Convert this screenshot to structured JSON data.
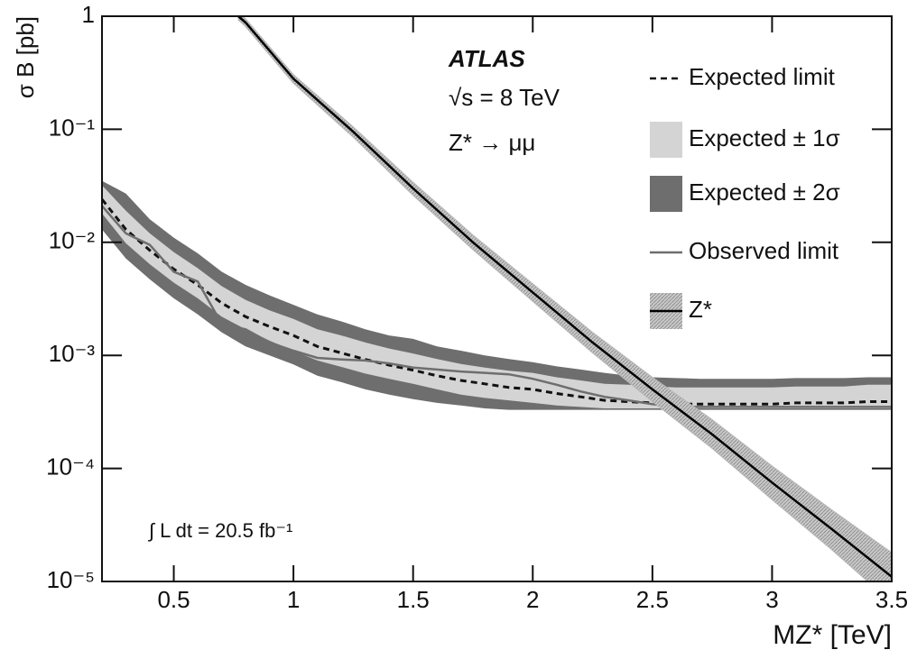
{
  "chart_data": {
    "type": "line",
    "x_label": "MZ* [TeV]",
    "y_label": "σ B [pb]",
    "annotations": [
      "ATLAS",
      "√s = 8 TeV",
      "Z* → μμ",
      "∫ L dt = 20.5 fb⁻¹"
    ],
    "log_y": true,
    "xlim": [
      0.2,
      3.5
    ],
    "ylim": [
      1e-05,
      1
    ],
    "xticks": [
      0.5,
      1,
      1.5,
      2,
      2.5,
      3,
      3.5
    ],
    "yticks": [
      {
        "value": 1e-05,
        "label": "10⁻⁵"
      },
      {
        "value": 0.0001,
        "label": "10⁻⁴"
      },
      {
        "value": 0.001,
        "label": "10⁻³"
      },
      {
        "value": 0.01,
        "label": "10⁻²"
      },
      {
        "value": 0.1,
        "label": "10⁻¹"
      },
      1
    ],
    "series": [
      {
        "name": "Expected limit",
        "kind": "line",
        "color": "#111111",
        "dashed": true,
        "x": [
          0.2,
          0.3,
          0.4,
          0.5,
          0.6,
          0.7,
          0.8,
          0.9,
          1.0,
          1.1,
          1.2,
          1.3,
          1.4,
          1.5,
          1.6,
          1.7,
          1.8,
          1.9,
          2.0,
          2.1,
          2.2,
          2.3,
          2.4,
          2.5,
          2.6,
          2.7,
          2.8,
          2.9,
          3.0,
          3.1,
          3.2,
          3.3,
          3.4,
          3.5
        ],
        "values": [
          0.024,
          0.013,
          0.0085,
          0.0058,
          0.0042,
          0.0029,
          0.0022,
          0.0018,
          0.0015,
          0.0012,
          0.00105,
          0.00092,
          0.00082,
          0.00074,
          0.00066,
          0.0006,
          0.00056,
          0.00052,
          0.0005,
          0.00046,
          0.00043,
          0.0004,
          0.00039,
          0.00038,
          0.00037,
          0.00037,
          0.00037,
          0.00037,
          0.00037,
          0.00038,
          0.00038,
          0.00038,
          0.00039,
          0.00039
        ]
      },
      {
        "name": "Expected ± 1σ",
        "kind": "band",
        "color": "#d4d4d4",
        "x": [
          0.2,
          0.3,
          0.4,
          0.5,
          0.6,
          0.7,
          0.8,
          0.9,
          1.0,
          1.1,
          1.2,
          1.3,
          1.4,
          1.5,
          1.6,
          1.7,
          1.8,
          1.9,
          2.0,
          2.1,
          2.2,
          2.3,
          2.4,
          2.5,
          2.6,
          2.7,
          2.8,
          2.9,
          3.0,
          3.1,
          3.2,
          3.3,
          3.4,
          3.5
        ],
        "lower": [
          0.018,
          0.0098,
          0.0064,
          0.0044,
          0.0032,
          0.0022,
          0.0017,
          0.00135,
          0.0011,
          0.0009,
          0.00079,
          0.00069,
          0.00062,
          0.00056,
          0.0005,
          0.00045,
          0.00042,
          0.0004,
          0.00038,
          0.00036,
          0.00035,
          0.00034,
          0.00034,
          0.00034,
          0.00034,
          0.00034,
          0.00034,
          0.00034,
          0.00034,
          0.00034,
          0.00034,
          0.00034,
          0.00034,
          0.00034
        ],
        "upper": [
          0.032,
          0.019,
          0.012,
          0.0082,
          0.0059,
          0.0041,
          0.0031,
          0.0025,
          0.0021,
          0.0017,
          0.0015,
          0.0013,
          0.00115,
          0.00104,
          0.00093,
          0.00084,
          0.00078,
          0.00073,
          0.0007,
          0.00064,
          0.0006,
          0.00056,
          0.00055,
          0.00053,
          0.00052,
          0.00052,
          0.00052,
          0.00052,
          0.00052,
          0.00053,
          0.00053,
          0.00053,
          0.00055,
          0.00055
        ]
      },
      {
        "name": "Expected ± 2σ",
        "kind": "band",
        "color": "#6e6e6e",
        "x": [
          0.2,
          0.3,
          0.4,
          0.5,
          0.6,
          0.7,
          0.8,
          0.9,
          1.0,
          1.1,
          1.2,
          1.3,
          1.4,
          1.5,
          1.6,
          1.7,
          1.8,
          1.9,
          2.0,
          2.1,
          2.2,
          2.3,
          2.4,
          2.5,
          2.6,
          2.7,
          2.8,
          2.9,
          3.0,
          3.1,
          3.2,
          3.3,
          3.4,
          3.5
        ],
        "lower": [
          0.013,
          0.0072,
          0.0047,
          0.0032,
          0.0023,
          0.0016,
          0.0012,
          0.001,
          0.00083,
          0.00066,
          0.00058,
          0.0005,
          0.00045,
          0.00041,
          0.00038,
          0.00036,
          0.00034,
          0.00033,
          0.00033,
          0.00033,
          0.00033,
          0.00033,
          0.00033,
          0.00033,
          0.00033,
          0.00033,
          0.00033,
          0.00033,
          0.00033,
          0.00033,
          0.00033,
          0.00033,
          0.00033,
          0.00033
        ],
        "upper": [
          0.035,
          0.027,
          0.016,
          0.011,
          0.008,
          0.0055,
          0.0042,
          0.0034,
          0.0028,
          0.0023,
          0.002,
          0.0017,
          0.0015,
          0.0014,
          0.0012,
          0.0011,
          0.001,
          0.00093,
          0.00087,
          0.0008,
          0.00075,
          0.0007,
          0.00066,
          0.00064,
          0.00063,
          0.00062,
          0.00062,
          0.00062,
          0.00062,
          0.00063,
          0.00063,
          0.00063,
          0.00064,
          0.00064
        ]
      },
      {
        "name": "Observed limit",
        "kind": "line",
        "color": "#6e6e6e",
        "x": [
          0.2,
          0.3,
          0.4,
          0.5,
          0.6,
          0.7,
          0.8,
          0.9,
          1.0,
          1.1,
          1.2,
          1.3,
          1.4,
          1.5,
          1.6,
          1.7,
          1.8,
          1.9,
          2.0,
          2.1,
          2.2,
          2.3,
          2.4,
          2.5,
          2.6,
          2.7,
          2.8,
          2.9,
          3.0,
          3.1,
          3.2,
          3.3,
          3.4,
          3.5
        ],
        "values": [
          0.021,
          0.012,
          0.0095,
          0.0055,
          0.0045,
          0.0019,
          0.0017,
          0.0013,
          0.0011,
          0.00095,
          0.00092,
          0.0009,
          0.00085,
          0.00078,
          0.00075,
          0.00072,
          0.0007,
          0.00068,
          0.00062,
          0.00055,
          0.00048,
          0.00043,
          0.0004,
          0.00037,
          0.00035,
          0.00035,
          0.00035,
          0.00035,
          0.00035,
          0.00035,
          0.00035,
          0.00035,
          0.00035,
          0.00035
        ]
      },
      {
        "name": "Z*",
        "kind": "line",
        "color": "#000000",
        "band_color": "#b8b8b8",
        "x": [
          0.77,
          0.8,
          1.0,
          1.25,
          1.5,
          1.75,
          2.0,
          2.25,
          2.5,
          2.75,
          3.0,
          3.25,
          3.5
        ],
        "values": [
          1,
          0.88,
          0.28,
          0.095,
          0.03,
          0.01,
          0.0036,
          0.0013,
          0.0005,
          0.0002,
          7.5e-05,
          2.9e-05,
          1.1e-05
        ],
        "lower": [
          0.93,
          0.81,
          0.255,
          0.085,
          0.026,
          0.0086,
          0.003,
          0.00105,
          0.00039,
          0.00015,
          5.3e-05,
          1.9e-05,
          6.5e-06
        ],
        "upper": [
          1.07,
          0.95,
          0.305,
          0.105,
          0.034,
          0.0116,
          0.0043,
          0.0016,
          0.00064,
          0.00027,
          0.000105,
          4.3e-05,
          1.8e-05
        ]
      }
    ]
  }
}
